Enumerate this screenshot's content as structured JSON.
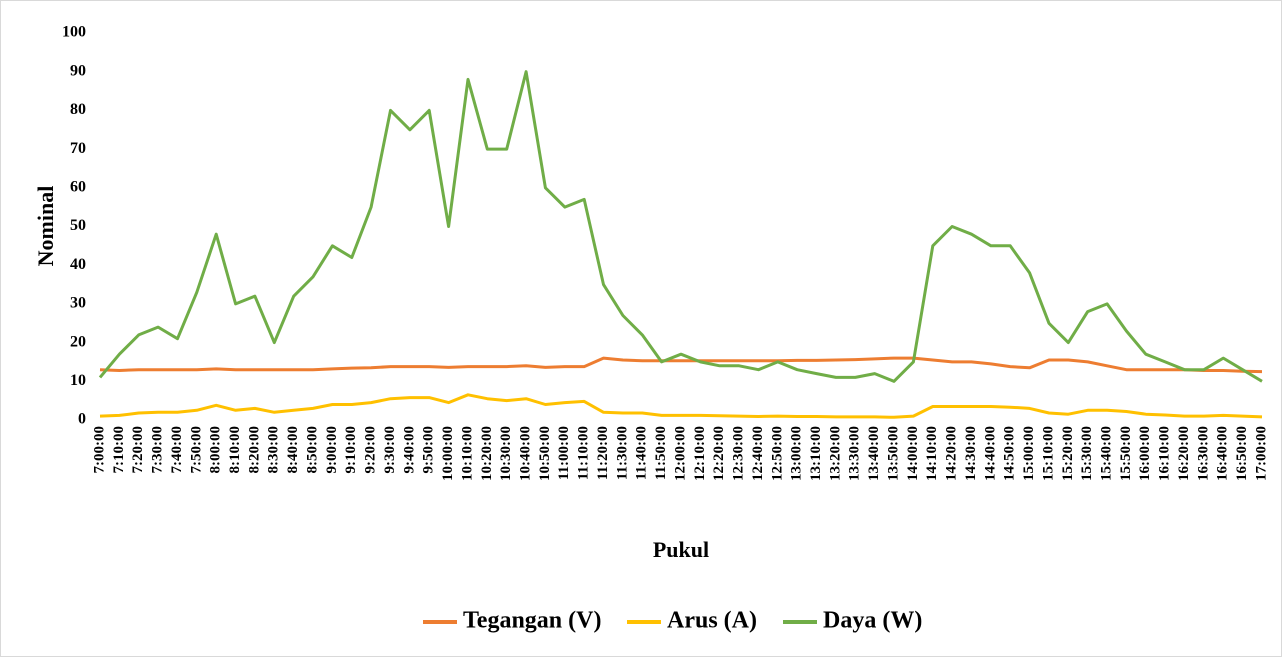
{
  "chart_data": {
    "type": "line",
    "y_label": "Nominal",
    "x_label": "Pukul",
    "categories": [
      "7:00:00",
      "7:10:00",
      "7:20:00",
      "7:30:00",
      "7:40:00",
      "7:50:00",
      "8:00:00",
      "8:10:00",
      "8:20:00",
      "8:30:00",
      "8:40:00",
      "8:50:00",
      "9:00:00",
      "9:10:00",
      "9:20:00",
      "9:30:00",
      "9:40:00",
      "9:50:00",
      "10:00:00",
      "10:10:00",
      "10:20:00",
      "10:30:00",
      "10:40:00",
      "10:50:00",
      "11:00:00",
      "11:10:00",
      "11:20:00",
      "11:30:00",
      "11:40:00",
      "11:50:00",
      "12:00:00",
      "12:10:00",
      "12:20:00",
      "12:30:00",
      "12:40:00",
      "12:50:00",
      "13:00:00",
      "13:10:00",
      "13:20:00",
      "13:30:00",
      "13:40:00",
      "13:50:00",
      "14:00:00",
      "14:10:00",
      "14:20:00",
      "14:30:00",
      "14:40:00",
      "14:50:00",
      "15:00:00",
      "15:10:00",
      "15:20:00",
      "15:30:00",
      "15:40:00",
      "15:50:00",
      "16:00:00",
      "16:10:00",
      "16:20:00",
      "16:30:00",
      "16:40:00",
      "16:50:00",
      "17:00:00"
    ],
    "series": [
      {
        "name": "Tegangan (V)",
        "color": "#ed7d31",
        "values": [
          13,
          12.8,
          13,
          13,
          13,
          13,
          13.2,
          13,
          13,
          13,
          13,
          13,
          13.2,
          13.4,
          13.5,
          13.8,
          13.8,
          13.8,
          13.6,
          13.8,
          13.8,
          13.8,
          14,
          13.6,
          13.8,
          13.8,
          16,
          15.5,
          15.3,
          15.3,
          15.3,
          15.3,
          15.3,
          15.3,
          15.3,
          15.3,
          15.4,
          15.4,
          15.5,
          15.6,
          15.8,
          16,
          16,
          15.5,
          15,
          15,
          14.5,
          13.8,
          13.5,
          15.5,
          15.5,
          15,
          14,
          13,
          13,
          13,
          13,
          12.8,
          12.8,
          12.6,
          12.5
        ]
      },
      {
        "name": "Arus (A)",
        "color": "#ffc000",
        "values": [
          1,
          1.2,
          1.8,
          2,
          2,
          2.5,
          3.8,
          2.5,
          3,
          2,
          2.5,
          3,
          4,
          4,
          4.5,
          5.5,
          5.8,
          5.8,
          4.5,
          6.5,
          5.5,
          5,
          5.5,
          4,
          4.5,
          4.8,
          2,
          1.8,
          1.8,
          1.2,
          1.2,
          1.2,
          1.1,
          1,
          0.9,
          1,
          0.9,
          0.9,
          0.8,
          0.8,
          0.8,
          0.7,
          1,
          3.5,
          3.5,
          3.5,
          3.5,
          3.3,
          3,
          1.8,
          1.5,
          2.5,
          2.5,
          2.2,
          1.5,
          1.3,
          1,
          1,
          1.2,
          1,
          0.8
        ]
      },
      {
        "name": "Daya (W)",
        "color": "#70ad47",
        "values": [
          11,
          17,
          22,
          24,
          21,
          33,
          48,
          30,
          32,
          20,
          32,
          37,
          45,
          42,
          55,
          80,
          75,
          80,
          50,
          88,
          70,
          70,
          90,
          60,
          55,
          57,
          35,
          27,
          22,
          15,
          17,
          15,
          14,
          14,
          13,
          15,
          13,
          12,
          11,
          11,
          12,
          10,
          15,
          45,
          50,
          48,
          45,
          45,
          38,
          25,
          20,
          28,
          30,
          23,
          17,
          15,
          13,
          13,
          16,
          13,
          10
        ]
      }
    ],
    "ylim": [
      0,
      100
    ],
    "yticks": [
      0,
      10,
      20,
      30,
      40,
      50,
      60,
      70,
      80,
      90,
      100
    ],
    "grid": false
  }
}
